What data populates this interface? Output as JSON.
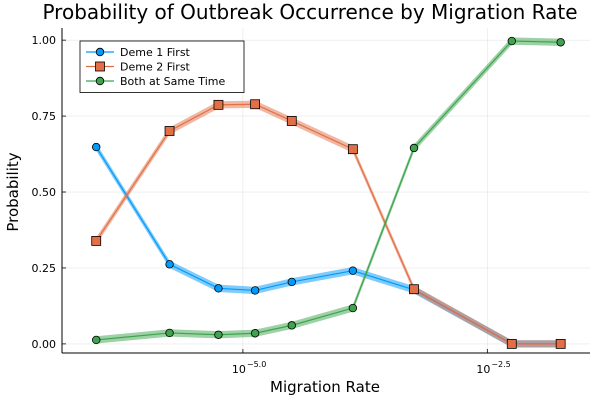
{
  "chart_data": {
    "type": "line",
    "title": "Probability of Outbreak Occurrence by Migration Rate",
    "xlabel": "Migration Rate",
    "ylabel": "Probability",
    "x_scale": "log10",
    "x": [
      -6.5,
      -5.75,
      -5.25,
      -4.875,
      -4.5,
      -3.875,
      -3.25,
      -2.25,
      -1.75
    ],
    "x_tick_values": [
      -5.0,
      -2.5
    ],
    "x_tick_labels": [
      "10",
      "10"
    ],
    "x_tick_exponents": [
      "−5.0",
      "−2.5"
    ],
    "ylim": [
      -0.03,
      1.04
    ],
    "y_ticks": [
      0.0,
      0.25,
      0.5,
      0.75,
      1.0
    ],
    "y_tick_labels": [
      "0.00",
      "0.25",
      "0.50",
      "0.75",
      "1.00"
    ],
    "grid": true,
    "legend_position": "top-left",
    "series": [
      {
        "name": "Deme 1 First",
        "color": "#009AFA",
        "marker": "circle",
        "values": [
          0.648,
          0.262,
          0.183,
          0.176,
          0.204,
          0.241,
          0.178,
          0.0,
          0.0
        ]
      },
      {
        "name": "Deme 2 First",
        "color": "#E26F46",
        "marker": "square",
        "values": [
          0.339,
          0.701,
          0.787,
          0.789,
          0.734,
          0.641,
          0.18,
          0.0,
          0.0
        ]
      },
      {
        "name": "Both at Same Time",
        "color": "#3EA44E",
        "marker": "circle",
        "values": [
          0.013,
          0.036,
          0.03,
          0.035,
          0.061,
          0.118,
          0.645,
          0.997,
          0.993
        ]
      }
    ]
  }
}
